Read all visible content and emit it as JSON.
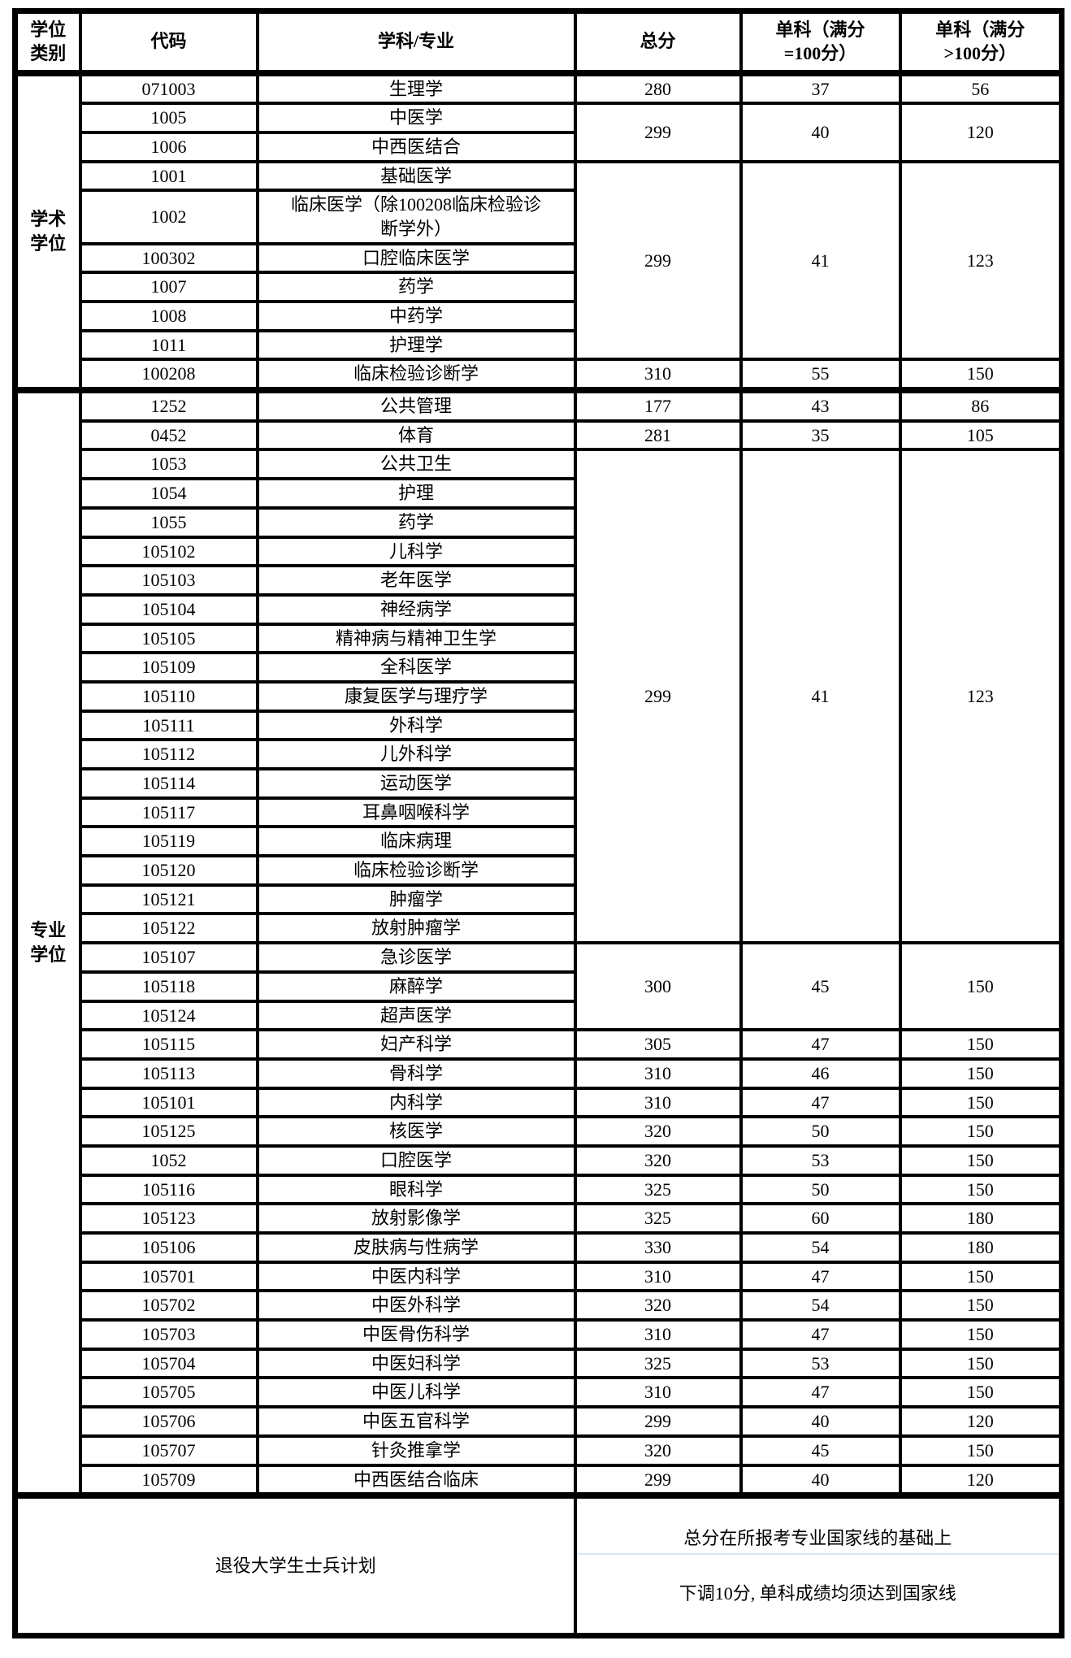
{
  "colors": {
    "border": "#000000",
    "background": "#ffffff",
    "text": "#000000",
    "footer_divider": "#dce6f1"
  },
  "table": {
    "headers": [
      "学位\n类别",
      "代码",
      "学科/专业",
      "总分",
      "单科（满分\n=100分）",
      "单科（满分\n>100分）"
    ],
    "sections": [
      {
        "category": "学术\n学位",
        "groups": [
          {
            "total": "280",
            "sub_eq100": "37",
            "sub_gt100": "56",
            "rows": [
              {
                "code": "071003",
                "major": "生理学"
              }
            ]
          },
          {
            "total": "299",
            "sub_eq100": "40",
            "sub_gt100": "120",
            "rows": [
              {
                "code": "1005",
                "major": "中医学"
              },
              {
                "code": "1006",
                "major": "中西医结合"
              }
            ]
          },
          {
            "total": "299",
            "sub_eq100": "41",
            "sub_gt100": "123",
            "rows": [
              {
                "code": "1001",
                "major": "基础医学"
              },
              {
                "code": "1002",
                "major": "临床医学（除100208临床检验诊\n断学外）"
              },
              {
                "code": "100302",
                "major": "口腔临床医学"
              },
              {
                "code": "1007",
                "major": "药学"
              },
              {
                "code": "1008",
                "major": "中药学"
              },
              {
                "code": "1011",
                "major": "护理学"
              }
            ]
          },
          {
            "total": "310",
            "sub_eq100": "55",
            "sub_gt100": "150",
            "rows": [
              {
                "code": "100208",
                "major": "临床检验诊断学"
              }
            ]
          }
        ]
      },
      {
        "category": "专业\n学位",
        "groups": [
          {
            "total": "177",
            "sub_eq100": "43",
            "sub_gt100": "86",
            "rows": [
              {
                "code": "1252",
                "major": "公共管理"
              }
            ]
          },
          {
            "total": "281",
            "sub_eq100": "35",
            "sub_gt100": "105",
            "rows": [
              {
                "code": "0452",
                "major": "体育"
              }
            ]
          },
          {
            "total": "299",
            "sub_eq100": "41",
            "sub_gt100": "123",
            "rows": [
              {
                "code": "1053",
                "major": "公共卫生"
              },
              {
                "code": "1054",
                "major": "护理"
              },
              {
                "code": "1055",
                "major": "药学"
              },
              {
                "code": "105102",
                "major": "儿科学"
              },
              {
                "code": "105103",
                "major": "老年医学"
              },
              {
                "code": "105104",
                "major": "神经病学"
              },
              {
                "code": "105105",
                "major": "精神病与精神卫生学"
              },
              {
                "code": "105109",
                "major": "全科医学"
              },
              {
                "code": "105110",
                "major": "康复医学与理疗学"
              },
              {
                "code": "105111",
                "major": "外科学"
              },
              {
                "code": "105112",
                "major": "儿外科学"
              },
              {
                "code": "105114",
                "major": "运动医学"
              },
              {
                "code": "105117",
                "major": "耳鼻咽喉科学"
              },
              {
                "code": "105119",
                "major": "临床病理"
              },
              {
                "code": "105120",
                "major": "临床检验诊断学"
              },
              {
                "code": "105121",
                "major": "肿瘤学"
              },
              {
                "code": "105122",
                "major": "放射肿瘤学"
              }
            ]
          },
          {
            "total": "300",
            "sub_eq100": "45",
            "sub_gt100": "150",
            "rows": [
              {
                "code": "105107",
                "major": "急诊医学"
              },
              {
                "code": "105118",
                "major": "麻醉学"
              },
              {
                "code": "105124",
                "major": "超声医学"
              }
            ]
          },
          {
            "total": "305",
            "sub_eq100": "47",
            "sub_gt100": "150",
            "rows": [
              {
                "code": "105115",
                "major": "妇产科学"
              }
            ]
          },
          {
            "total": "310",
            "sub_eq100": "46",
            "sub_gt100": "150",
            "rows": [
              {
                "code": "105113",
                "major": "骨科学"
              }
            ]
          },
          {
            "total": "310",
            "sub_eq100": "47",
            "sub_gt100": "150",
            "rows": [
              {
                "code": "105101",
                "major": "内科学"
              }
            ]
          },
          {
            "total": "320",
            "sub_eq100": "50",
            "sub_gt100": "150",
            "rows": [
              {
                "code": "105125",
                "major": "核医学"
              }
            ]
          },
          {
            "total": "320",
            "sub_eq100": "53",
            "sub_gt100": "150",
            "rows": [
              {
                "code": "1052",
                "major": "口腔医学"
              }
            ]
          },
          {
            "total": "325",
            "sub_eq100": "50",
            "sub_gt100": "150",
            "rows": [
              {
                "code": "105116",
                "major": "眼科学"
              }
            ]
          },
          {
            "total": "325",
            "sub_eq100": "60",
            "sub_gt100": "180",
            "rows": [
              {
                "code": "105123",
                "major": "放射影像学"
              }
            ]
          },
          {
            "total": "330",
            "sub_eq100": "54",
            "sub_gt100": "180",
            "rows": [
              {
                "code": "105106",
                "major": "皮肤病与性病学"
              }
            ]
          },
          {
            "total": "310",
            "sub_eq100": "47",
            "sub_gt100": "150",
            "rows": [
              {
                "code": "105701",
                "major": "中医内科学"
              }
            ]
          },
          {
            "total": "320",
            "sub_eq100": "54",
            "sub_gt100": "150",
            "rows": [
              {
                "code": "105702",
                "major": "中医外科学"
              }
            ]
          },
          {
            "total": "310",
            "sub_eq100": "47",
            "sub_gt100": "150",
            "rows": [
              {
                "code": "105703",
                "major": "中医骨伤科学"
              }
            ]
          },
          {
            "total": "325",
            "sub_eq100": "53",
            "sub_gt100": "150",
            "rows": [
              {
                "code": "105704",
                "major": "中医妇科学"
              }
            ]
          },
          {
            "total": "310",
            "sub_eq100": "47",
            "sub_gt100": "150",
            "rows": [
              {
                "code": "105705",
                "major": "中医儿科学"
              }
            ]
          },
          {
            "total": "299",
            "sub_eq100": "40",
            "sub_gt100": "120",
            "rows": [
              {
                "code": "105706",
                "major": "中医五官科学"
              }
            ]
          },
          {
            "total": "320",
            "sub_eq100": "45",
            "sub_gt100": "150",
            "rows": [
              {
                "code": "105707",
                "major": "针灸推拿学"
              }
            ]
          },
          {
            "total": "299",
            "sub_eq100": "40",
            "sub_gt100": "120",
            "rows": [
              {
                "code": "105709",
                "major": "中西医结合临床"
              }
            ]
          }
        ]
      }
    ],
    "footer": {
      "left": "退役大学生士兵计划",
      "right_lines": [
        "总分在所报考专业国家线的基础上",
        "下调10分, 单科成绩均须达到国家线"
      ]
    }
  }
}
